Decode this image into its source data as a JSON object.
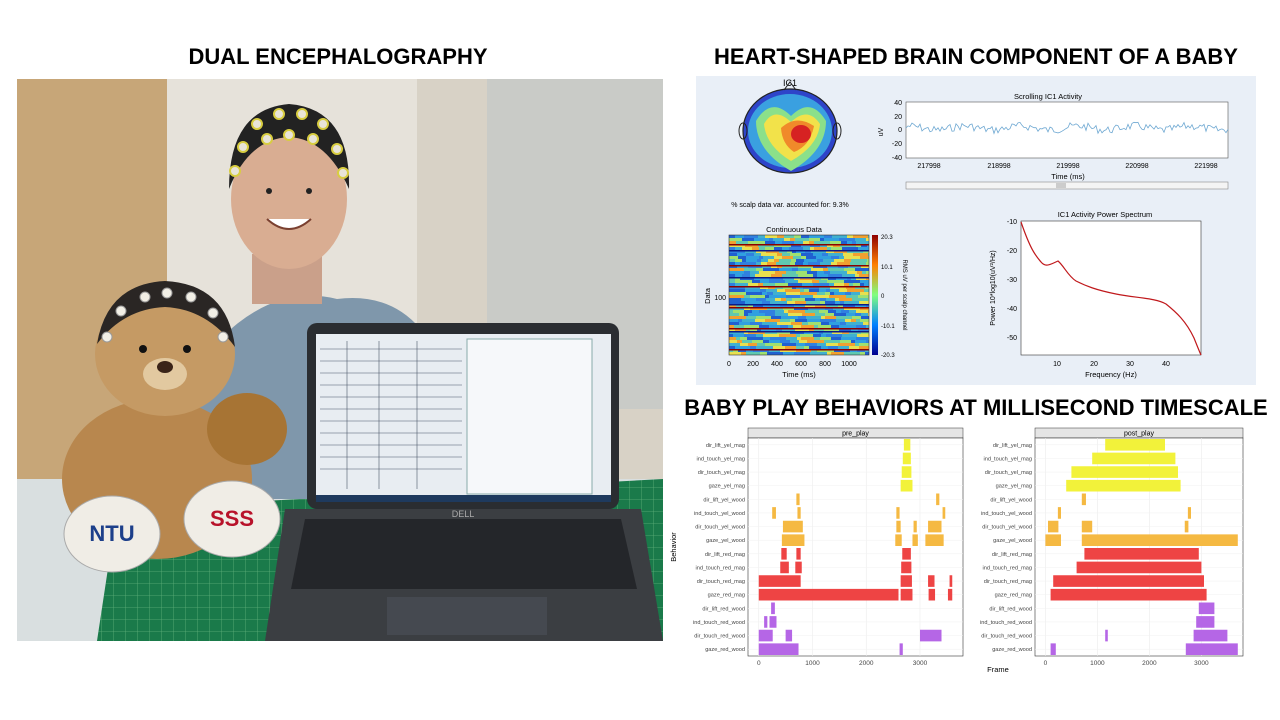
{
  "titles": {
    "left": "DUAL ENCEPHALOGRAPHY",
    "top_right": "HEART-SHAPED BRAIN COMPONENT OF A BABY",
    "bottom_right": "BABY PLAY BEHAVIORS AT MILLISECOND TIMESCALE"
  },
  "photo": {
    "bear_labels": [
      "NTU",
      "SSS"
    ],
    "laptop_brand": "DELL"
  },
  "eeg_panel": {
    "topo_title": "IC1",
    "scalp_var_text": "% scalp data var. accounted for: 9.3%",
    "scrolling": {
      "title": "Scrolling IC1 Activity",
      "ylabel": "uV",
      "xlabel": "Time (ms)",
      "yticks": [
        "40",
        "20",
        "0",
        "-20",
        "-40"
      ],
      "xticks": [
        "217998",
        "218998",
        "219998",
        "220998",
        "221998"
      ]
    },
    "continuous": {
      "title": "Continuous Data",
      "ylabel": "Data",
      "xlabel": "Time (ms)",
      "ytick": "100",
      "xticks": [
        "0",
        "200",
        "400",
        "600",
        "800",
        "1000"
      ],
      "colorbar_label": "RMS uV per scalp channel",
      "colorbar_ticks": [
        "20.3",
        "10.1",
        "0",
        "-10.1",
        "-20.3"
      ]
    },
    "spectrum": {
      "title": "IC1 Activity Power Spectrum",
      "xlabel": "Frequency (Hz)",
      "ylabel": "Power 10*log10(uV²/Hz)",
      "yticks": [
        "-10",
        "-20",
        "-30",
        "-40",
        "-50"
      ],
      "xticks": [
        "10",
        "20",
        "30",
        "40"
      ]
    }
  },
  "chart_data": {
    "type": "timeline",
    "facets": [
      "pre_play",
      "post_play"
    ],
    "ylabel": "Behavior",
    "xlabel": "Frame",
    "xlim": [
      -200,
      3800
    ],
    "xticks": [
      0,
      1000,
      2000,
      3000
    ],
    "behaviors": [
      "dir_lift_yel_mag",
      "ind_touch_yel_mag",
      "dir_touch_yel_mag",
      "gaze_yel_mag",
      "dir_lift_yel_wood",
      "ind_touch_yel_wood",
      "dir_touch_yel_wood",
      "gaze_yel_wood",
      "dir_lift_red_mag",
      "ind_touch_red_mag",
      "dir_touch_red_mag",
      "gaze_red_mag",
      "dir_lift_red_wood",
      "ind_touch_red_wood",
      "dir_touch_red_wood",
      "gaze_red_wood"
    ],
    "behavior_colors": {
      "yel_mag": "#f2f23a",
      "yel_wood": "#f5b942",
      "red_mag": "#ee4444",
      "red_wood": "#b566e6"
    },
    "series": [
      {
        "name": "pre_play",
        "intervals": [
          [
            "dir_lift_yel_mag",
            2700,
            2820
          ],
          [
            "ind_touch_yel_mag",
            2680,
            2830
          ],
          [
            "dir_touch_yel_mag",
            2660,
            2840
          ],
          [
            "gaze_yel_mag",
            2640,
            2860
          ],
          [
            "dir_lift_yel_wood",
            700,
            760
          ],
          [
            "dir_lift_yel_wood",
            3300,
            3360
          ],
          [
            "ind_touch_yel_wood",
            250,
            320
          ],
          [
            "ind_touch_yel_wood",
            720,
            780
          ],
          [
            "ind_touch_yel_wood",
            2560,
            2620
          ],
          [
            "ind_touch_yel_wood",
            3420,
            3470
          ],
          [
            "dir_touch_yel_wood",
            450,
            820
          ],
          [
            "dir_touch_yel_wood",
            2560,
            2640
          ],
          [
            "dir_touch_yel_wood",
            2880,
            2940
          ],
          [
            "dir_touch_yel_wood",
            3150,
            3400
          ],
          [
            "gaze_yel_wood",
            430,
            850
          ],
          [
            "gaze_yel_wood",
            2540,
            2660
          ],
          [
            "gaze_yel_wood",
            2860,
            2960
          ],
          [
            "gaze_yel_wood",
            3100,
            3440
          ],
          [
            "dir_lift_red_mag",
            420,
            520
          ],
          [
            "dir_lift_red_mag",
            700,
            780
          ],
          [
            "dir_lift_red_mag",
            2670,
            2830
          ],
          [
            "ind_touch_red_mag",
            400,
            560
          ],
          [
            "ind_touch_red_mag",
            680,
            800
          ],
          [
            "ind_touch_red_mag",
            2650,
            2840
          ],
          [
            "dir_touch_red_mag",
            0,
            780
          ],
          [
            "dir_touch_red_mag",
            2640,
            2850
          ],
          [
            "dir_touch_red_mag",
            3150,
            3270
          ],
          [
            "dir_touch_red_mag",
            3550,
            3600
          ],
          [
            "gaze_red_mag",
            0,
            2600
          ],
          [
            "gaze_red_mag",
            2640,
            2860
          ],
          [
            "gaze_red_mag",
            3160,
            3280
          ],
          [
            "gaze_red_mag",
            3520,
            3600
          ],
          [
            "dir_lift_red_wood",
            230,
            300
          ],
          [
            "ind_touch_red_wood",
            100,
            160
          ],
          [
            "ind_touch_red_wood",
            200,
            330
          ],
          [
            "dir_touch_red_wood",
            0,
            260
          ],
          [
            "dir_touch_red_wood",
            500,
            620
          ],
          [
            "dir_touch_red_wood",
            3000,
            3400
          ],
          [
            "gaze_red_wood",
            0,
            740
          ],
          [
            "gaze_red_wood",
            2620,
            2680
          ]
        ]
      },
      {
        "name": "post_play",
        "intervals": [
          [
            "dir_lift_yel_mag",
            1150,
            2300
          ],
          [
            "ind_touch_yel_mag",
            900,
            2500
          ],
          [
            "dir_touch_yel_mag",
            500,
            2550
          ],
          [
            "gaze_yel_mag",
            400,
            2600
          ],
          [
            "dir_lift_yel_wood",
            700,
            780
          ],
          [
            "ind_touch_yel_wood",
            240,
            300
          ],
          [
            "ind_touch_yel_wood",
            2740,
            2800
          ],
          [
            "dir_touch_yel_wood",
            50,
            250
          ],
          [
            "dir_touch_yel_wood",
            700,
            900
          ],
          [
            "dir_touch_yel_wood",
            2680,
            2750
          ],
          [
            "gaze_yel_wood",
            0,
            300
          ],
          [
            "gaze_yel_wood",
            700,
            3700
          ],
          [
            "dir_lift_red_mag",
            750,
            2950
          ],
          [
            "ind_touch_red_mag",
            600,
            3000
          ],
          [
            "dir_touch_red_mag",
            150,
            3050
          ],
          [
            "gaze_red_mag",
            100,
            3100
          ],
          [
            "dir_lift_red_wood",
            2950,
            3250
          ],
          [
            "ind_touch_red_wood",
            2900,
            3250
          ],
          [
            "dir_touch_red_wood",
            2850,
            3500
          ],
          [
            "gaze_red_wood",
            2700,
            3700
          ],
          [
            "gaze_red_wood",
            100,
            200
          ],
          [
            "dir_touch_red_wood",
            1150,
            1200
          ]
        ]
      }
    ]
  }
}
